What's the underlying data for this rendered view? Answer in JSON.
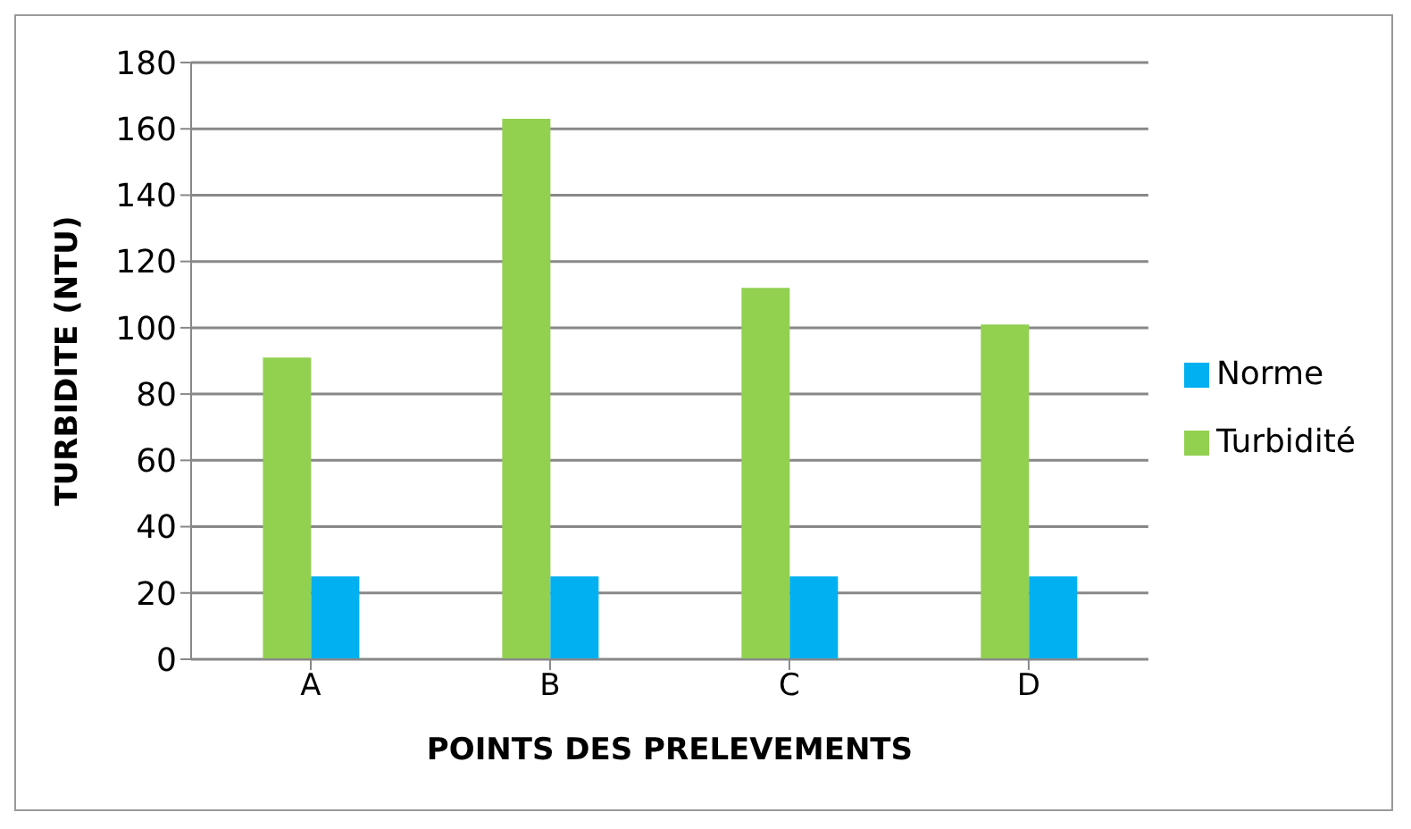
{
  "chart_data": {
    "type": "bar",
    "xlabel": "POINTS DES PRELEVEMENTS",
    "ylabel": "TURBIDITE  (NTU)",
    "categories": [
      "A",
      "B",
      "C",
      "D"
    ],
    "series": [
      {
        "name": "Turbidité",
        "color": "#92d050",
        "values": [
          91,
          163,
          112,
          101
        ]
      },
      {
        "name": "Norme",
        "color": "#00b0f0",
        "values": [
          25,
          25,
          25,
          25
        ]
      }
    ],
    "ylim": [
      0,
      180
    ],
    "yticks": [
      0,
      20,
      40,
      60,
      80,
      100,
      120,
      140,
      160,
      180
    ],
    "grid": "y",
    "legend": "right"
  }
}
